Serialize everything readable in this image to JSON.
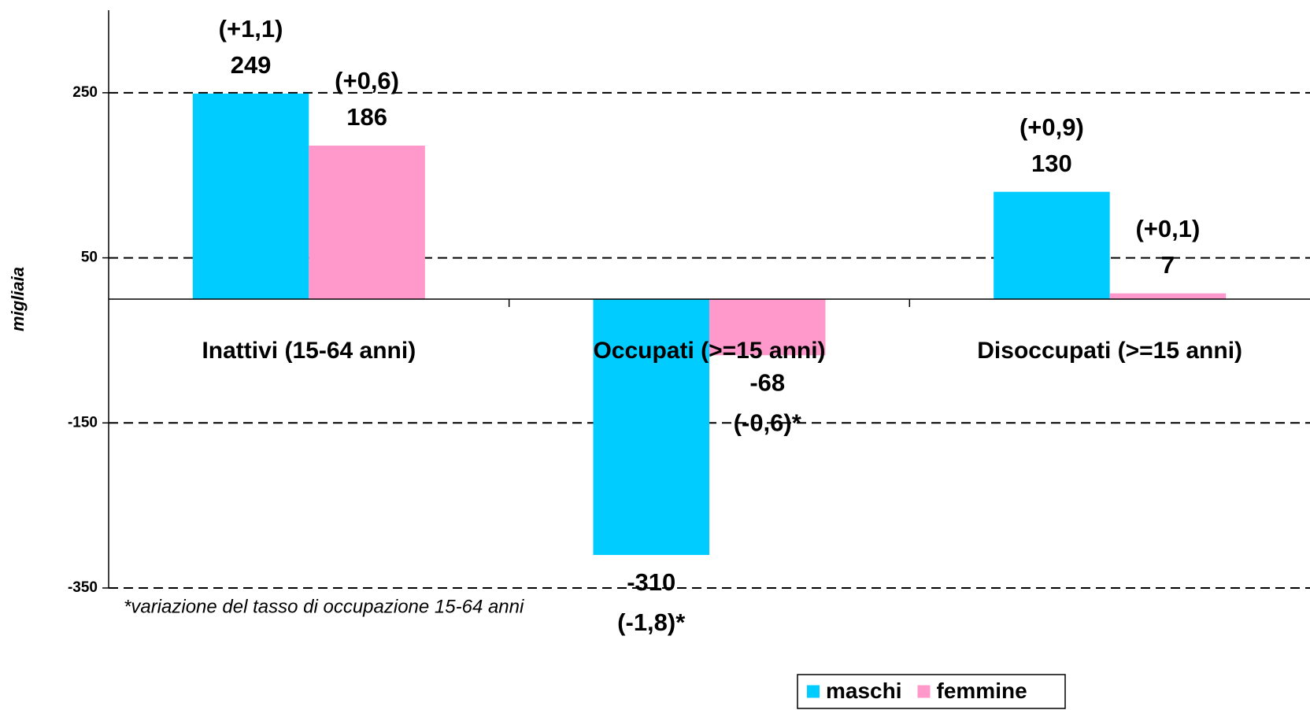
{
  "chart_data": {
    "type": "bar",
    "y_label": "migliaia",
    "footnote": "*variazione del tasso di occupazione 15-64 anni",
    "categories": [
      "Inattivi (15-64 anni)",
      "Occupati (>=15 anni)",
      "Disoccupati (>=15 anni)"
    ],
    "series": [
      {
        "name": "maschi",
        "color": "#00ccff",
        "values": [
          249,
          -310,
          130
        ],
        "rate_changes": [
          "(+1,1)",
          "(-1,8)*",
          "(+0,9)"
        ]
      },
      {
        "name": "femmine",
        "color": "#ff99cc",
        "values": [
          186,
          -68,
          7
        ],
        "rate_changes": [
          "(+0,6)",
          "(-0,6)*",
          "(+0,1)"
        ]
      }
    ],
    "ylim": [
      -350,
      350
    ],
    "yticks": [
      -350,
      -150,
      50,
      250
    ],
    "grid": true,
    "legend": "bottom"
  }
}
